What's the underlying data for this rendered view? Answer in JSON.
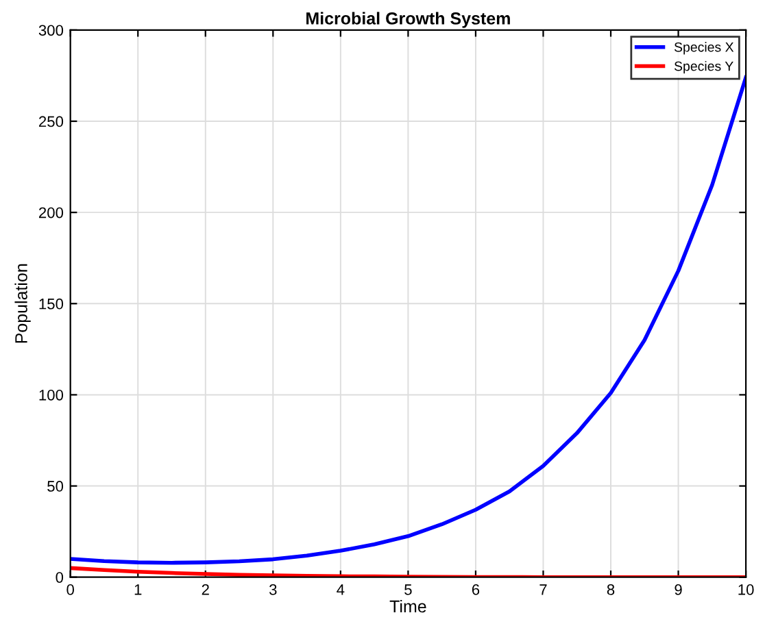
{
  "chart_data": {
    "type": "line",
    "title": "Microbial Growth System",
    "xlabel": "Time",
    "ylabel": "Population",
    "x": [
      0,
      0.5,
      1,
      1.5,
      2,
      2.5,
      3,
      3.5,
      4,
      4.5,
      5,
      5.5,
      6,
      6.5,
      7,
      7.5,
      8,
      8.5,
      9,
      9.5,
      10
    ],
    "series": [
      {
        "name": "Species X",
        "color": "#0000ff",
        "values": [
          10,
          8.8,
          8.1,
          7.9,
          8.1,
          8.7,
          9.8,
          11.8,
          14.5,
          18,
          22.5,
          29,
          37,
          47,
          61,
          79,
          101,
          130,
          168,
          215,
          274
        ]
      },
      {
        "name": "Species Y",
        "color": "#ff0000",
        "values": [
          5,
          3.9,
          3,
          2.3,
          1.8,
          1.3,
          1,
          0.7,
          0.5,
          0.4,
          0.3,
          0.2,
          0.1,
          0.1,
          0,
          0,
          0,
          0,
          0,
          0,
          0
        ]
      }
    ],
    "xlim": [
      0,
      10
    ],
    "ylim": [
      0,
      300
    ],
    "xticks": [
      0,
      1,
      2,
      3,
      4,
      5,
      6,
      7,
      8,
      9,
      10
    ],
    "yticks": [
      0,
      50,
      100,
      150,
      200,
      250,
      300
    ],
    "grid": true,
    "legend": "top right",
    "marker": "none",
    "line_style": "solid"
  }
}
